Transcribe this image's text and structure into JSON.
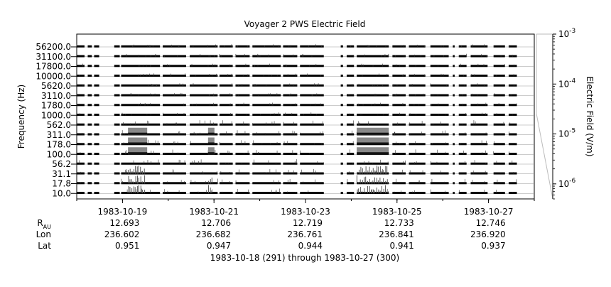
{
  "chart_data": {
    "type": "spectrogram-stack",
    "title": "Voyager 2 PWS Electric Field",
    "ylabel": "Frequency (Hz)",
    "right_axis_label": "Electric Field (V/m)",
    "right_axis_scale": "log",
    "right_axis_range": [
      5e-07,
      0.001
    ],
    "right_axis_ticks": [
      {
        "value": 0.001,
        "mantissa": "10",
        "exp": "-3"
      },
      {
        "value": 0.0001,
        "mantissa": "10",
        "exp": "-4"
      },
      {
        "value": 1e-05,
        "mantissa": "10",
        "exp": "-5"
      },
      {
        "value": 1e-06,
        "mantissa": "10",
        "exp": "-6"
      }
    ],
    "frequency_channels": [
      "56200.0",
      "31100.0",
      "17800.0",
      "10000.0",
      "5620.0",
      "3110.0",
      "1780.0",
      "1000.0",
      "562.0",
      "311.0",
      "178.0",
      "100.0",
      "56.2",
      "31.1",
      "17.8",
      "10.0"
    ],
    "x_range_days": [
      "1983-10-18",
      "1983-10-28"
    ],
    "x_tick_labels": [
      "1983-10-19",
      "1983-10-21",
      "1983-10-23",
      "1983-10-25",
      "1983-10-27"
    ],
    "ephemeris": {
      "labels": {
        "r_main": "R",
        "r_sub": "AU",
        "lon": "Lon",
        "lat": "Lat"
      },
      "dates": [
        "1983-10-19",
        "1983-10-21",
        "1983-10-23",
        "1983-10-25",
        "1983-10-27"
      ],
      "r_au": [
        "12.693",
        "12.706",
        "12.719",
        "12.733",
        "12.746"
      ],
      "lon": [
        "236.602",
        "236.682",
        "236.761",
        "236.841",
        "236.920"
      ],
      "lat": [
        "0.951",
        "0.947",
        "0.944",
        "0.941",
        "0.937"
      ]
    },
    "data_segments_days": [
      [
        0.0,
        0.17
      ],
      [
        0.24,
        0.33
      ],
      [
        0.38,
        0.49
      ],
      [
        0.82,
        0.94
      ],
      [
        0.97,
        1.82
      ],
      [
        1.88,
        2.39
      ],
      [
        2.47,
        3.08
      ],
      [
        3.12,
        3.41
      ],
      [
        3.47,
        3.78
      ],
      [
        3.84,
        4.46
      ],
      [
        4.51,
        4.82
      ],
      [
        4.88,
        5.4
      ],
      [
        5.77,
        5.82
      ],
      [
        5.9,
        6.06
      ],
      [
        6.12,
        6.82
      ],
      [
        6.9,
        7.19
      ],
      [
        7.26,
        7.62
      ],
      [
        7.73,
        8.13
      ],
      [
        8.22,
        8.26
      ],
      [
        8.35,
        8.52
      ],
      [
        8.61,
        8.98
      ],
      [
        9.11,
        9.36
      ],
      [
        9.44,
        9.62
      ]
    ],
    "enhanced_regions": [
      {
        "start": 1.12,
        "end": 1.54,
        "channels": [
          "311.0",
          "178.0",
          "100.0"
        ],
        "level": "strong"
      },
      {
        "start": 2.87,
        "end": 3.01,
        "channels": [
          "311.0",
          "178.0",
          "100.0"
        ],
        "level": "strong"
      },
      {
        "start": 6.12,
        "end": 6.82,
        "channels": [
          "311.0",
          "178.0",
          "100.0"
        ],
        "level": "strong"
      },
      {
        "start": 1.12,
        "end": 1.54,
        "channels": [
          "31.1",
          "17.8",
          "10.0"
        ],
        "level": "moderate"
      },
      {
        "start": 2.87,
        "end": 3.01,
        "channels": [
          "17.8",
          "10.0"
        ],
        "level": "moderate"
      },
      {
        "start": 6.12,
        "end": 6.82,
        "channels": [
          "31.1",
          "17.8",
          "10.0"
        ],
        "level": "moderate"
      }
    ],
    "footer": "1983-10-18 (291) through 1983-10-27 (300)"
  }
}
